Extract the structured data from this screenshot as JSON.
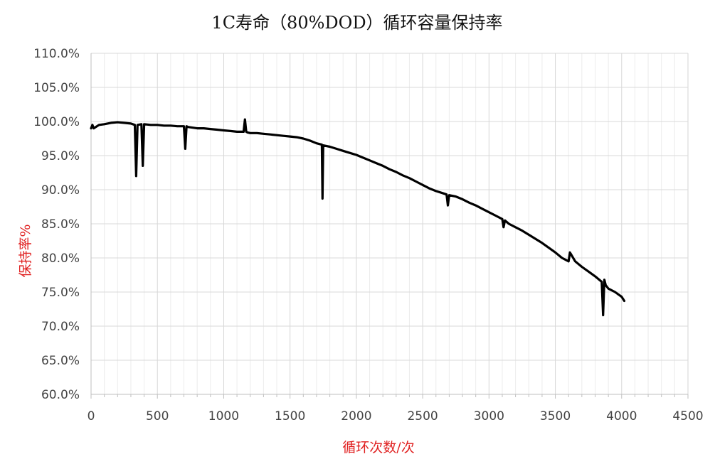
{
  "chart_data": {
    "type": "line",
    "title": "1C寿命（80%DOD）循环容量保持率",
    "xlabel": "循环次数/次",
    "ylabel": "保持率%",
    "xlim": [
      0,
      4500
    ],
    "ylim": [
      0.6,
      1.1
    ],
    "xticks": [
      0,
      500,
      1000,
      1500,
      2000,
      2500,
      3000,
      3500,
      4000,
      4500
    ],
    "xtick_labels": [
      "0",
      "500",
      "1000",
      "1500",
      "2000",
      "2500",
      "3000",
      "3500",
      "4000",
      "4500"
    ],
    "yticks": [
      0.6,
      0.65,
      0.7,
      0.75,
      0.8,
      0.85,
      0.9,
      0.95,
      1.0,
      1.05,
      1.1
    ],
    "ytick_labels": [
      "60.0%",
      "65.0%",
      "70.0%",
      "75.0%",
      "80.0%",
      "85.0%",
      "90.0%",
      "95.0%",
      "100.0%",
      "105.0%",
      "110.0%"
    ],
    "grid": true,
    "legend": "none",
    "axis_label_color": "#e02020",
    "line_color": "#000000",
    "series": [
      {
        "x": [
          0,
          10,
          20,
          60,
          100,
          150,
          200,
          250,
          300,
          330,
          340,
          350,
          380,
          390,
          400,
          450,
          500,
          550,
          600,
          650,
          700,
          710,
          720,
          730,
          800,
          850,
          900,
          950,
          1000,
          1050,
          1100,
          1150,
          1160,
          1170,
          1180,
          1200,
          1250,
          1300,
          1350,
          1400,
          1450,
          1500,
          1550,
          1600,
          1650,
          1700,
          1740,
          1745,
          1750,
          1800,
          1850,
          1900,
          1950,
          2000,
          2050,
          2100,
          2150,
          2200,
          2250,
          2300,
          2350,
          2400,
          2450,
          2500,
          2550,
          2600,
          2650,
          2680,
          2690,
          2700,
          2750,
          2800,
          2850,
          2900,
          2950,
          3000,
          3050,
          3100,
          3110,
          3120,
          3150,
          3200,
          3250,
          3300,
          3350,
          3400,
          3450,
          3500,
          3550,
          3600,
          3610,
          3650,
          3700,
          3750,
          3800,
          3850,
          3860,
          3870,
          3880,
          3900,
          3950,
          4000,
          4020
        ],
        "y": [
          0.99,
          0.995,
          0.99,
          0.995,
          0.996,
          0.998,
          0.999,
          0.998,
          0.997,
          0.995,
          0.92,
          0.995,
          0.996,
          0.935,
          0.996,
          0.995,
          0.995,
          0.994,
          0.994,
          0.993,
          0.993,
          0.96,
          0.993,
          0.992,
          0.99,
          0.99,
          0.989,
          0.988,
          0.987,
          0.986,
          0.985,
          0.985,
          1.003,
          0.985,
          0.984,
          0.983,
          0.983,
          0.982,
          0.981,
          0.98,
          0.979,
          0.978,
          0.977,
          0.975,
          0.972,
          0.968,
          0.966,
          0.887,
          0.965,
          0.963,
          0.96,
          0.957,
          0.954,
          0.951,
          0.947,
          0.943,
          0.939,
          0.935,
          0.93,
          0.926,
          0.921,
          0.917,
          0.912,
          0.907,
          0.902,
          0.898,
          0.895,
          0.893,
          0.877,
          0.892,
          0.89,
          0.886,
          0.881,
          0.877,
          0.872,
          0.867,
          0.862,
          0.857,
          0.845,
          0.855,
          0.85,
          0.845,
          0.84,
          0.834,
          0.828,
          0.822,
          0.815,
          0.808,
          0.8,
          0.795,
          0.808,
          0.795,
          0.787,
          0.78,
          0.773,
          0.765,
          0.716,
          0.768,
          0.76,
          0.755,
          0.75,
          0.743,
          0.737
        ]
      }
    ]
  }
}
